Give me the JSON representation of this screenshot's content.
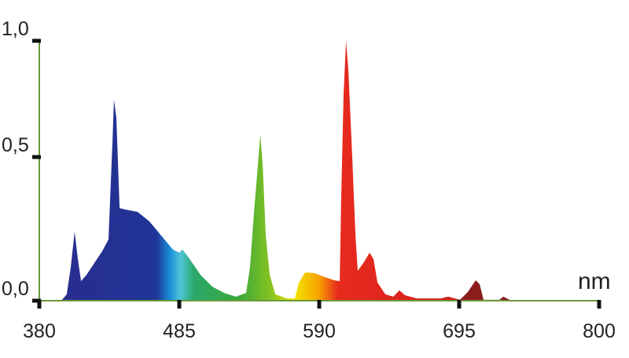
{
  "chart_data": {
    "type": "area",
    "xlabel": "nm",
    "ylabel": "",
    "xlim": [
      380,
      800
    ],
    "ylim": [
      0,
      1.0
    ],
    "x_ticks": [
      "380",
      "485",
      "590",
      "695",
      "800"
    ],
    "y_ticks": [
      "0,0",
      "0,5",
      "1,0"
    ],
    "grid": false,
    "axis_color": "#6a9a3a",
    "fill": "visible-spectrum color gradient by wavelength",
    "series": [
      {
        "points": [
          [
            380,
            0
          ],
          [
            396.5,
            0
          ],
          [
            400.6,
            0.022
          ],
          [
            403.6,
            0.117
          ],
          [
            406.5,
            0.24
          ],
          [
            408.9,
            0.145
          ],
          [
            411.3,
            0.068
          ],
          [
            415.4,
            0.09
          ],
          [
            427.2,
            0.172
          ],
          [
            431.9,
            0.213
          ],
          [
            433.1,
            0.35
          ],
          [
            434.9,
            0.568
          ],
          [
            436,
            0.747
          ],
          [
            437.8,
            0.669
          ],
          [
            440.2,
            0.322
          ],
          [
            444.9,
            0.317
          ],
          [
            453.7,
            0.309
          ],
          [
            462.6,
            0.276
          ],
          [
            471.4,
            0.227
          ],
          [
            480.3,
            0.178
          ],
          [
            485,
            0.167
          ],
          [
            487.4,
            0.178
          ],
          [
            492.1,
            0.15
          ],
          [
            500.9,
            0.09
          ],
          [
            509.8,
            0.049
          ],
          [
            518.6,
            0.027
          ],
          [
            527.5,
            0.014
          ],
          [
            535.2,
            0.027
          ],
          [
            538.1,
            0.117
          ],
          [
            541.1,
            0.309
          ],
          [
            544,
            0.473
          ],
          [
            545.8,
            0.595
          ],
          [
            547.6,
            0.473
          ],
          [
            549.9,
            0.227
          ],
          [
            552.9,
            0.09
          ],
          [
            557,
            0.022
          ],
          [
            565.8,
            0.008
          ],
          [
            571.7,
            0.008
          ],
          [
            574.7,
            0.063
          ],
          [
            579.4,
            0.098
          ],
          [
            586.5,
            0.096
          ],
          [
            592.4,
            0.085
          ],
          [
            601.2,
            0.071
          ],
          [
            605.4,
            0.068
          ],
          [
            606.5,
            0.363
          ],
          [
            608.3,
            0.77
          ],
          [
            610.1,
            1.0
          ],
          [
            611.9,
            0.872
          ],
          [
            614.8,
            0.5
          ],
          [
            617.2,
            0.227
          ],
          [
            618.9,
            0.104
          ],
          [
            623.1,
            0.131
          ],
          [
            627.8,
            0.167
          ],
          [
            630.7,
            0.145
          ],
          [
            633.7,
            0.063
          ],
          [
            639.6,
            0.022
          ],
          [
            645.5,
            0.014
          ],
          [
            650.2,
            0.036
          ],
          [
            654.3,
            0.019
          ],
          [
            663.2,
            0.008
          ],
          [
            680.9,
            0.008
          ],
          [
            686.8,
            0.014
          ],
          [
            695.6,
            0.003
          ],
          [
            701.5,
            0.03
          ],
          [
            707.4,
            0.071
          ],
          [
            710.4,
            0.057
          ],
          [
            713.3,
            0.003
          ],
          [
            725.1,
            0.003
          ],
          [
            728.1,
            0.014
          ],
          [
            732.8,
            0.003
          ],
          [
            739.9,
            0
          ],
          [
            800,
            0
          ]
        ]
      }
    ],
    "spectrum_colors": [
      [
        "380",
        "#2b2b8c"
      ],
      [
        "468",
        "#1f3597"
      ],
      [
        "478",
        "#1a8fd8"
      ],
      [
        "486",
        "#4fc4d8"
      ],
      [
        "496",
        "#2aa86a"
      ],
      [
        "530",
        "#3aa83a"
      ],
      [
        "555",
        "#8cc420"
      ],
      [
        "572",
        "#f2e400"
      ],
      [
        "590",
        "#f7a000"
      ],
      [
        "604",
        "#e82a1e"
      ],
      [
        "690",
        "#d42020"
      ],
      [
        "698",
        "#8b1c1c"
      ],
      [
        "740",
        "#8b1c1c"
      ]
    ]
  }
}
